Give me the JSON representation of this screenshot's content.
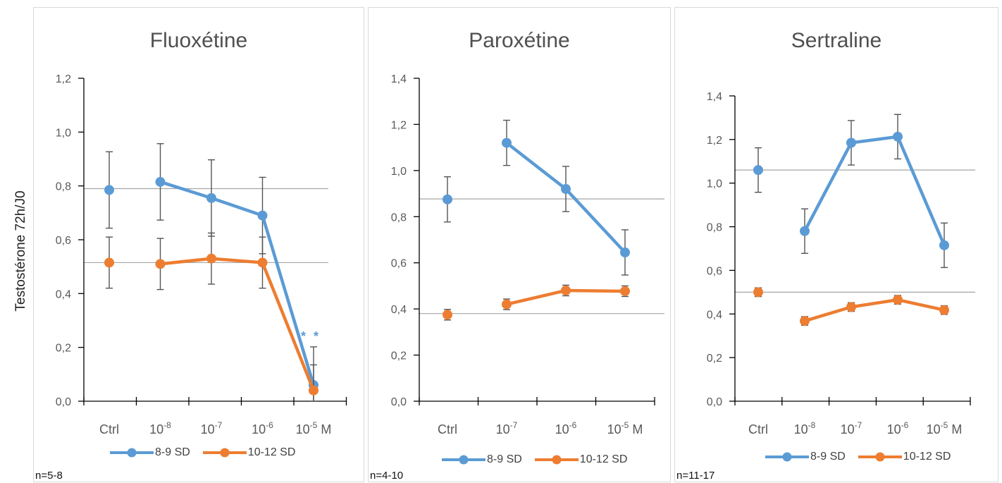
{
  "y_axis_title": "Testostérone 72h/J0",
  "colors": {
    "series1": "#5b9bd5",
    "series2": "#ed7d31",
    "error": "#555555",
    "refline": "#a6a6a6",
    "axis": "#000000"
  },
  "legend_labels": [
    "8-9 SD",
    "10-12 SD"
  ],
  "chart_data": [
    {
      "type": "line",
      "title": "Fluoxétine",
      "n_label": "n=5-8",
      "categories": [
        {
          "base": "Ctrl",
          "exp": ""
        },
        {
          "base": "10",
          "exp": "-8"
        },
        {
          "base": "10",
          "exp": "-7"
        },
        {
          "base": "10",
          "exp": "-6"
        },
        {
          "base": "10",
          "exp": "-5"
        }
      ],
      "unit_label": "M",
      "ylim": [
        0,
        1.2
      ],
      "yticks": [
        "0,0",
        "0,2",
        "0,4",
        "0,6",
        "0,8",
        "1,0",
        "1,2"
      ],
      "ytick_values": [
        0,
        0.2,
        0.4,
        0.6,
        0.8,
        1.0,
        1.2
      ],
      "reference_lines": [
        0.79,
        0.515
      ],
      "annotation": "**",
      "series": [
        {
          "name": "8-9 SD",
          "values": [
            0.785,
            0.815,
            0.755,
            0.69,
            0.06
          ],
          "errors": [
            0.142,
            0.142,
            0.142,
            0.142,
            0.142
          ],
          "connect_from": 1
        },
        {
          "name": "10-12 SD",
          "values": [
            0.515,
            0.51,
            0.53,
            0.515,
            0.04
          ],
          "errors": [
            0.095,
            0.095,
            0.095,
            0.095,
            0.095
          ],
          "connect_from": 1
        }
      ]
    },
    {
      "type": "line",
      "title": "Paroxétine",
      "n_label": "n=4-10",
      "categories": [
        {
          "base": "Ctrl",
          "exp": ""
        },
        {
          "base": "10",
          "exp": "-7"
        },
        {
          "base": "10",
          "exp": "-6"
        },
        {
          "base": "10",
          "exp": "-5"
        }
      ],
      "unit_label": "M",
      "ylim": [
        0,
        1.4
      ],
      "yticks": [
        "0,0",
        "0,2",
        "0,4",
        "0,6",
        "0,8",
        "1,0",
        "1,2",
        "1,4"
      ],
      "ytick_values": [
        0,
        0.2,
        0.4,
        0.6,
        0.8,
        1.0,
        1.2,
        1.4
      ],
      "reference_lines": [
        0.877,
        0.38
      ],
      "annotation": "",
      "series": [
        {
          "name": "8-9 SD",
          "values": [
            0.875,
            1.12,
            0.92,
            0.645
          ],
          "errors": [
            0.098,
            0.098,
            0.098,
            0.098
          ],
          "connect_from": 1
        },
        {
          "name": "10-12 SD",
          "values": [
            0.375,
            0.42,
            0.48,
            0.477
          ],
          "errors": [
            0.023,
            0.023,
            0.023,
            0.023
          ],
          "connect_from": 1
        }
      ]
    },
    {
      "type": "line",
      "title": "Sertraline",
      "n_label": "n=11-17",
      "categories": [
        {
          "base": "Ctrl",
          "exp": ""
        },
        {
          "base": "10",
          "exp": "-8"
        },
        {
          "base": "10",
          "exp": "-7"
        },
        {
          "base": "10",
          "exp": "-6"
        },
        {
          "base": "10",
          "exp": "-5"
        }
      ],
      "unit_label": "M",
      "ylim": [
        0,
        1.4
      ],
      "yticks": [
        "0,0",
        "0,2",
        "0,4",
        "0,6",
        "0,8",
        "1,0",
        "1,2",
        "1,4"
      ],
      "ytick_values": [
        0,
        0.2,
        0.4,
        0.6,
        0.8,
        1.0,
        1.2,
        1.4
      ],
      "reference_lines": [
        1.06,
        0.5
      ],
      "annotation": "",
      "series": [
        {
          "name": "8-9 SD",
          "values": [
            1.06,
            0.78,
            1.185,
            1.213,
            0.715
          ],
          "errors": [
            0.102,
            0.102,
            0.102,
            0.102,
            0.102
          ],
          "connect_from": 1
        },
        {
          "name": "10-12 SD",
          "values": [
            0.5,
            0.368,
            0.432,
            0.465,
            0.418
          ],
          "errors": [
            0.02,
            0.02,
            0.02,
            0.02,
            0.02
          ],
          "connect_from": 1
        }
      ]
    }
  ]
}
